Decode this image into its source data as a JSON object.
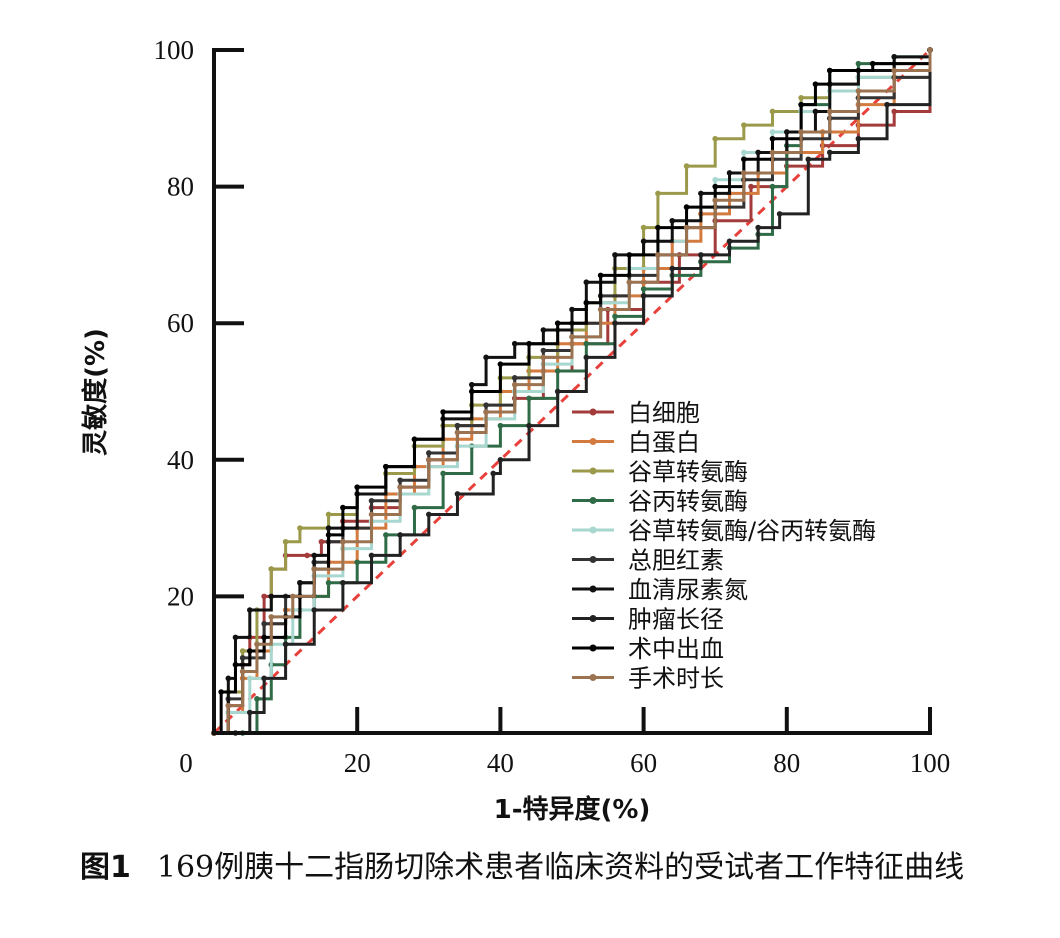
{
  "chart_data": {
    "type": "line",
    "xlabel": "1-特异度(%)",
    "ylabel": "灵敏度(%)",
    "xlim": [
      0,
      100
    ],
    "ylim": [
      0,
      100
    ],
    "xticks": [
      0,
      20,
      40,
      60,
      80,
      100
    ],
    "yticks": [
      20,
      40,
      60,
      80,
      100
    ],
    "origin_label": "0",
    "legend_position": "center-right",
    "reference_line": {
      "style": "dashed",
      "color": "#e8413c",
      "points": [
        [
          0,
          0
        ],
        [
          100,
          100
        ]
      ]
    },
    "series": [
      {
        "name": "白细胞",
        "color": "#a33b3b",
        "points": [
          [
            0,
            0
          ],
          [
            2,
            4
          ],
          [
            4,
            10
          ],
          [
            5,
            14
          ],
          [
            7,
            20
          ],
          [
            8,
            24
          ],
          [
            10,
            26
          ],
          [
            13,
            26
          ],
          [
            15,
            28
          ],
          [
            18,
            31
          ],
          [
            22,
            33
          ],
          [
            26,
            36
          ],
          [
            30,
            40
          ],
          [
            34,
            45
          ],
          [
            38,
            47
          ],
          [
            42,
            49
          ],
          [
            46,
            53
          ],
          [
            50,
            57
          ],
          [
            55,
            62
          ],
          [
            60,
            66
          ],
          [
            65,
            70
          ],
          [
            70,
            75
          ],
          [
            75,
            80
          ],
          [
            80,
            83
          ],
          [
            85,
            86
          ],
          [
            90,
            89
          ],
          [
            95,
            91
          ],
          [
            100,
            100
          ]
        ]
      },
      {
        "name": "白蛋白",
        "color": "#d37a3e",
        "points": [
          [
            0,
            0
          ],
          [
            2,
            3
          ],
          [
            4,
            8
          ],
          [
            6,
            12
          ],
          [
            8,
            16
          ],
          [
            10,
            18
          ],
          [
            14,
            20
          ],
          [
            16,
            25
          ],
          [
            20,
            30
          ],
          [
            24,
            35
          ],
          [
            28,
            39
          ],
          [
            32,
            43
          ],
          [
            36,
            46
          ],
          [
            40,
            50
          ],
          [
            44,
            53
          ],
          [
            48,
            57
          ],
          [
            52,
            60
          ],
          [
            56,
            64
          ],
          [
            60,
            68
          ],
          [
            64,
            72
          ],
          [
            68,
            76
          ],
          [
            72,
            79
          ],
          [
            76,
            82
          ],
          [
            80,
            85
          ],
          [
            85,
            88
          ],
          [
            90,
            92
          ],
          [
            95,
            96
          ],
          [
            100,
            100
          ]
        ]
      },
      {
        "name": "谷草转氨酶",
        "color": "#9a9a4a",
        "points": [
          [
            0,
            0
          ],
          [
            2,
            6
          ],
          [
            4,
            12
          ],
          [
            6,
            18
          ],
          [
            8,
            24
          ],
          [
            10,
            28
          ],
          [
            12,
            30
          ],
          [
            16,
            32
          ],
          [
            20,
            35
          ],
          [
            24,
            38
          ],
          [
            28,
            42
          ],
          [
            32,
            45
          ],
          [
            36,
            48
          ],
          [
            40,
            52
          ],
          [
            44,
            55
          ],
          [
            48,
            59
          ],
          [
            52,
            63
          ],
          [
            56,
            68
          ],
          [
            60,
            74
          ],
          [
            62,
            79
          ],
          [
            66,
            83
          ],
          [
            70,
            87
          ],
          [
            74,
            89
          ],
          [
            78,
            91
          ],
          [
            82,
            93
          ],
          [
            86,
            95
          ],
          [
            90,
            96
          ],
          [
            95,
            98
          ],
          [
            100,
            100
          ]
        ]
      },
      {
        "name": "谷丙转氨酶",
        "color": "#2f6b46",
        "points": [
          [
            0,
            0
          ],
          [
            4,
            0
          ],
          [
            6,
            5
          ],
          [
            8,
            10
          ],
          [
            10,
            14
          ],
          [
            12,
            18
          ],
          [
            14,
            20
          ],
          [
            16,
            22
          ],
          [
            20,
            25
          ],
          [
            24,
            29
          ],
          [
            28,
            33
          ],
          [
            32,
            38
          ],
          [
            36,
            42
          ],
          [
            40,
            45
          ],
          [
            44,
            49
          ],
          [
            48,
            53
          ],
          [
            52,
            57
          ],
          [
            56,
            61
          ],
          [
            60,
            65
          ],
          [
            64,
            67
          ],
          [
            68,
            69
          ],
          [
            72,
            71
          ],
          [
            76,
            73
          ],
          [
            78,
            80
          ],
          [
            80,
            86
          ],
          [
            82,
            92
          ],
          [
            86,
            97
          ],
          [
            90,
            98
          ],
          [
            95,
            99
          ],
          [
            100,
            100
          ]
        ]
      },
      {
        "name": "谷草转氨酶/谷丙转氨酶",
        "color": "#a7d7cf",
        "points": [
          [
            0,
            0
          ],
          [
            2,
            3
          ],
          [
            5,
            8
          ],
          [
            8,
            13
          ],
          [
            11,
            18
          ],
          [
            14,
            23
          ],
          [
            18,
            27
          ],
          [
            22,
            31
          ],
          [
            26,
            35
          ],
          [
            30,
            39
          ],
          [
            34,
            42
          ],
          [
            38,
            46
          ],
          [
            42,
            50
          ],
          [
            46,
            54
          ],
          [
            50,
            58
          ],
          [
            54,
            63
          ],
          [
            58,
            68
          ],
          [
            62,
            72
          ],
          [
            66,
            77
          ],
          [
            70,
            81
          ],
          [
            74,
            85
          ],
          [
            78,
            88
          ],
          [
            82,
            91
          ],
          [
            86,
            94
          ],
          [
            90,
            96
          ],
          [
            95,
            99
          ],
          [
            100,
            100
          ]
        ]
      },
      {
        "name": "总胆红素",
        "color": "#333333",
        "points": [
          [
            0,
            0
          ],
          [
            2,
            5
          ],
          [
            4,
            11
          ],
          [
            7,
            16
          ],
          [
            10,
            20
          ],
          [
            12,
            22
          ],
          [
            14,
            25
          ],
          [
            16,
            28
          ],
          [
            18,
            30
          ],
          [
            22,
            34
          ],
          [
            26,
            37
          ],
          [
            30,
            41
          ],
          [
            34,
            45
          ],
          [
            38,
            48
          ],
          [
            42,
            52
          ],
          [
            46,
            56
          ],
          [
            50,
            60
          ],
          [
            54,
            64
          ],
          [
            58,
            67
          ],
          [
            62,
            70
          ],
          [
            66,
            74
          ],
          [
            70,
            77
          ],
          [
            74,
            81
          ],
          [
            78,
            84
          ],
          [
            82,
            87
          ],
          [
            86,
            90
          ],
          [
            90,
            93
          ],
          [
            95,
            96
          ],
          [
            100,
            100
          ]
        ]
      },
      {
        "name": "血清尿素氮",
        "color": "#111111",
        "points": [
          [
            0,
            0
          ],
          [
            2,
            8
          ],
          [
            3,
            14
          ],
          [
            5,
            18
          ],
          [
            8,
            20
          ],
          [
            12,
            22
          ],
          [
            14,
            26
          ],
          [
            16,
            30
          ],
          [
            20,
            35
          ],
          [
            24,
            39
          ],
          [
            28,
            43
          ],
          [
            32,
            46
          ],
          [
            36,
            51
          ],
          [
            38,
            55
          ],
          [
            42,
            57
          ],
          [
            46,
            59
          ],
          [
            50,
            62
          ],
          [
            52,
            66
          ],
          [
            56,
            70
          ],
          [
            60,
            72
          ],
          [
            64,
            75
          ],
          [
            68,
            79
          ],
          [
            72,
            82
          ],
          [
            76,
            85
          ],
          [
            80,
            88
          ],
          [
            84,
            91
          ],
          [
            86,
            95
          ],
          [
            90,
            97
          ],
          [
            95,
            99
          ],
          [
            100,
            100
          ]
        ]
      },
      {
        "name": "肿瘤长径",
        "color": "#222222",
        "points": [
          [
            0,
            0
          ],
          [
            3,
            0
          ],
          [
            5,
            3
          ],
          [
            7,
            8
          ],
          [
            10,
            13
          ],
          [
            14,
            18
          ],
          [
            18,
            22
          ],
          [
            22,
            26
          ],
          [
            26,
            29
          ],
          [
            30,
            32
          ],
          [
            34,
            35
          ],
          [
            39,
            38
          ],
          [
            40,
            40
          ],
          [
            44,
            45
          ],
          [
            48,
            50
          ],
          [
            52,
            55
          ],
          [
            56,
            60
          ],
          [
            60,
            64
          ],
          [
            64,
            68
          ],
          [
            68,
            70
          ],
          [
            72,
            72
          ],
          [
            76,
            74
          ],
          [
            79,
            76
          ],
          [
            83,
            84
          ],
          [
            86,
            85
          ],
          [
            90,
            87
          ],
          [
            94,
            92
          ],
          [
            100,
            100
          ]
        ]
      },
      {
        "name": "术中出血",
        "color": "#000000",
        "points": [
          [
            0,
            0
          ],
          [
            1,
            6
          ],
          [
            3,
            10
          ],
          [
            5,
            12
          ],
          [
            7,
            14
          ],
          [
            10,
            17
          ],
          [
            12,
            20
          ],
          [
            14,
            24
          ],
          [
            16,
            29
          ],
          [
            18,
            33
          ],
          [
            20,
            36
          ],
          [
            24,
            39
          ],
          [
            28,
            43
          ],
          [
            32,
            47
          ],
          [
            36,
            50
          ],
          [
            40,
            54
          ],
          [
            44,
            57
          ],
          [
            48,
            60
          ],
          [
            52,
            63
          ],
          [
            54,
            67
          ],
          [
            58,
            70
          ],
          [
            62,
            74
          ],
          [
            66,
            77
          ],
          [
            70,
            80
          ],
          [
            74,
            84
          ],
          [
            78,
            87
          ],
          [
            82,
            92
          ],
          [
            84,
            95
          ],
          [
            86,
            97
          ],
          [
            92,
            98
          ],
          [
            100,
            100
          ]
        ]
      },
      {
        "name": "手术时长",
        "color": "#9c7350",
        "points": [
          [
            0,
            0
          ],
          [
            2,
            4
          ],
          [
            4,
            9
          ],
          [
            6,
            13
          ],
          [
            8,
            17
          ],
          [
            11,
            20
          ],
          [
            14,
            24
          ],
          [
            18,
            28
          ],
          [
            22,
            32
          ],
          [
            26,
            36
          ],
          [
            30,
            40
          ],
          [
            34,
            44
          ],
          [
            38,
            47
          ],
          [
            42,
            51
          ],
          [
            46,
            55
          ],
          [
            50,
            58
          ],
          [
            54,
            62
          ],
          [
            58,
            66
          ],
          [
            62,
            70
          ],
          [
            66,
            74
          ],
          [
            70,
            78
          ],
          [
            74,
            82
          ],
          [
            78,
            85
          ],
          [
            82,
            88
          ],
          [
            86,
            91
          ],
          [
            90,
            94
          ],
          [
            95,
            97
          ],
          [
            100,
            100
          ]
        ]
      }
    ]
  },
  "caption": {
    "prefix": "图1",
    "text": "169例胰十二指肠切除术患者临床资料的受试者工作特征曲线"
  }
}
